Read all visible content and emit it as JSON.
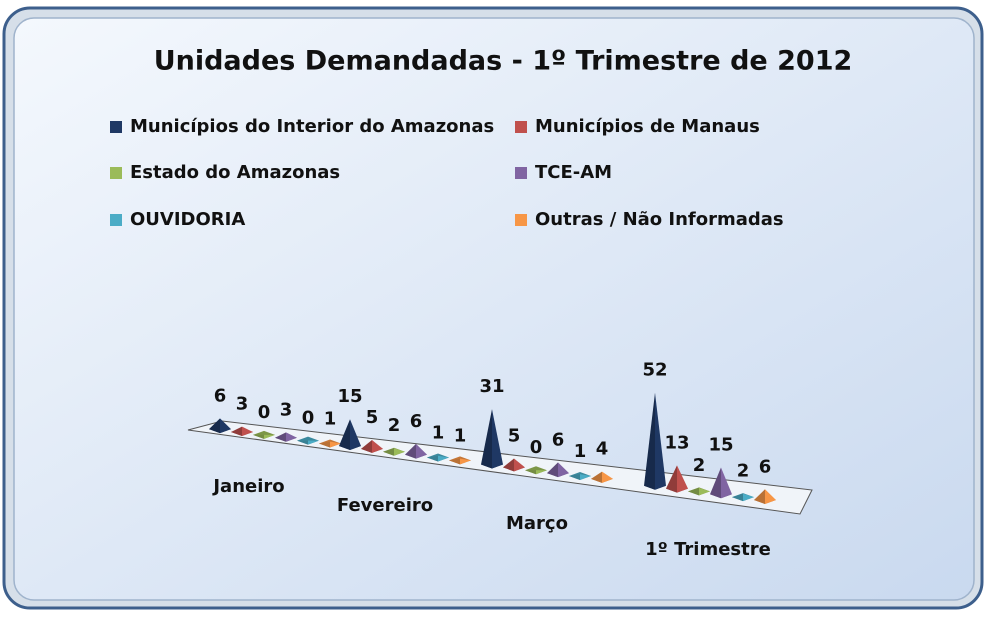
{
  "chart_data": {
    "type": "pyramid3d",
    "title": "Unidades Demandadas - 1º Trimestre de 2012",
    "categories": [
      "Janeiro",
      "Fevereiro",
      "Março",
      "1º Trimestre"
    ],
    "series": [
      {
        "name": "Municípios do Interior do Amazonas",
        "color": "#1f3864",
        "values": [
          6,
          15,
          31,
          52
        ]
      },
      {
        "name": "Municípios de Manaus",
        "color": "#c0504d",
        "values": [
          3,
          5,
          5,
          13
        ]
      },
      {
        "name": "Estado do Amazonas",
        "color": "#9bbb59",
        "values": [
          0,
          2,
          0,
          2
        ]
      },
      {
        "name": "TCE-AM",
        "color": "#8064a2",
        "values": [
          3,
          6,
          6,
          15
        ]
      },
      {
        "name": "OUVIDORIA",
        "color": "#4bacc6",
        "values": [
          0,
          1,
          1,
          2
        ]
      },
      {
        "name": "Outras / Não Informadas",
        "color": "#f79646",
        "values": [
          1,
          1,
          4,
          6
        ]
      }
    ]
  }
}
